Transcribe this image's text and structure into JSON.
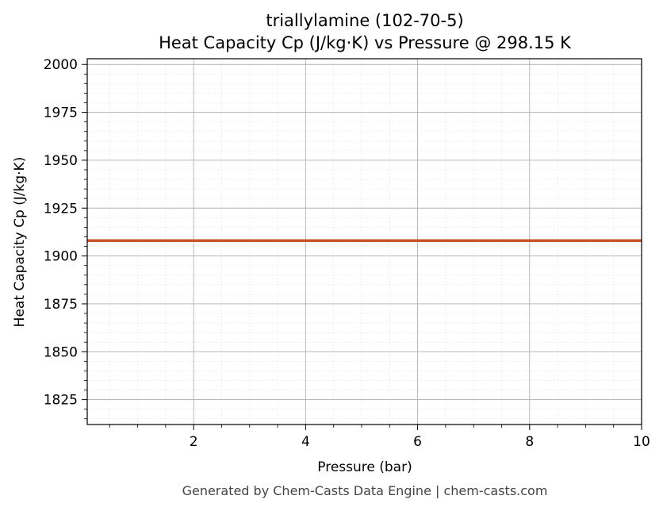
{
  "chart_data": {
    "type": "line",
    "title": "triallylamine (102-70-5)",
    "subtitle": "Heat Capacity Cp (J/kg·K) vs Pressure @ 298.15 K",
    "xlabel": "Pressure (bar)",
    "ylabel": "Heat Capacity Cp (J/kg·K)",
    "xlim": [
      0.1,
      10
    ],
    "ylim": [
      1812,
      2003
    ],
    "x_ticks": [
      2,
      4,
      6,
      8,
      10
    ],
    "x_tick_labels": [
      "2",
      "4",
      "6",
      "8",
      "10"
    ],
    "y_ticks": [
      1825,
      1850,
      1875,
      1900,
      1925,
      1950,
      1975,
      2000
    ],
    "y_tick_labels": [
      "1825",
      "1850",
      "1875",
      "1900",
      "1925",
      "1950",
      "1975",
      "2000"
    ],
    "grid": true,
    "minor_grid": true,
    "series": [
      {
        "color": "#c8532a",
        "x": [
          0.1,
          1,
          2,
          3,
          4,
          5,
          6,
          7,
          8,
          9,
          10
        ],
        "y": [
          1908,
          1908,
          1908,
          1908,
          1908,
          1908,
          1908,
          1908,
          1908,
          1908,
          1908
        ]
      }
    ]
  },
  "footer": "Generated by Chem-Casts Data Engine | chem-casts.com"
}
